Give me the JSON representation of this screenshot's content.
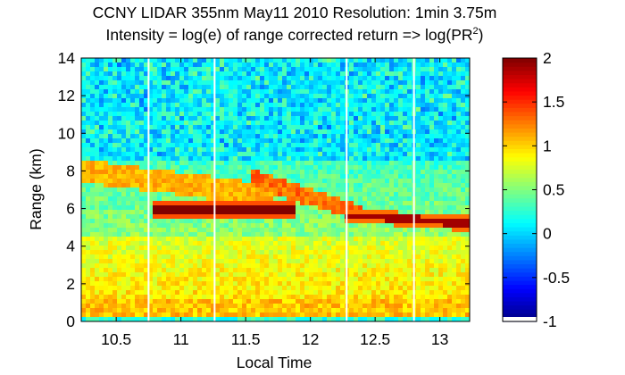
{
  "chart_data": {
    "type": "heatmap",
    "title_line1": "CCNY LIDAR 355nm May11 2010 Resolution: 1min 3.75m",
    "title_line2_prefix": "Intensity = log(e) of range corrected return => log(PR",
    "title_line2_sup": "2",
    "title_line2_suffix": ")",
    "xlabel": "Local Time",
    "ylabel": "Range (km)",
    "xlim": [
      10.23,
      13.23
    ],
    "ylim": [
      0,
      14
    ],
    "xticks": [
      10.5,
      11,
      11.5,
      12,
      12.5,
      13
    ],
    "xtick_labels": [
      "10.5",
      "11",
      "11.5",
      "12",
      "12.5",
      "13"
    ],
    "yticks": [
      0,
      2,
      4,
      6,
      8,
      10,
      12,
      14
    ],
    "ytick_labels": [
      "0",
      "2",
      "4",
      "6",
      "8",
      "10",
      "12",
      "14"
    ],
    "colorbar": {
      "clim": [
        -1,
        2
      ],
      "ticks": [
        -1,
        -0.5,
        0,
        0.5,
        1,
        1.5,
        2
      ],
      "tick_labels": [
        "-1",
        "-0.5",
        "0",
        "0.5",
        "1",
        "1.5",
        "2"
      ],
      "colormap": "jet"
    },
    "data_gap_times": [
      10.75,
      11.26,
      12.28,
      12.8
    ],
    "features": [
      {
        "name": "boundary-layer",
        "range_km": [
          0.2,
          4.5
        ],
        "value": 0.95
      },
      {
        "name": "dense-aerosol-layer-left",
        "time": [
          10.79,
          11.88
        ],
        "range_km": [
          5.5,
          6.3
        ],
        "value": 2.0
      },
      {
        "name": "dense-aerosol-layer-right",
        "time": [
          12.28,
          13.23
        ],
        "range_km": [
          4.8,
          5.9
        ],
        "value": 1.9
      },
      {
        "name": "elevated-layer",
        "time": [
          10.23,
          11.7
        ],
        "range_km": [
          7.2,
          8.6
        ],
        "value": 1.1
      },
      {
        "name": "sloping-plume",
        "time": [
          11.55,
          12.4
        ],
        "range_km": [
          5.7,
          7.6
        ],
        "value": 1.3
      },
      {
        "name": "noisy-free-troposphere",
        "range_km": [
          8.5,
          14
        ],
        "value": 0.1
      }
    ]
  }
}
